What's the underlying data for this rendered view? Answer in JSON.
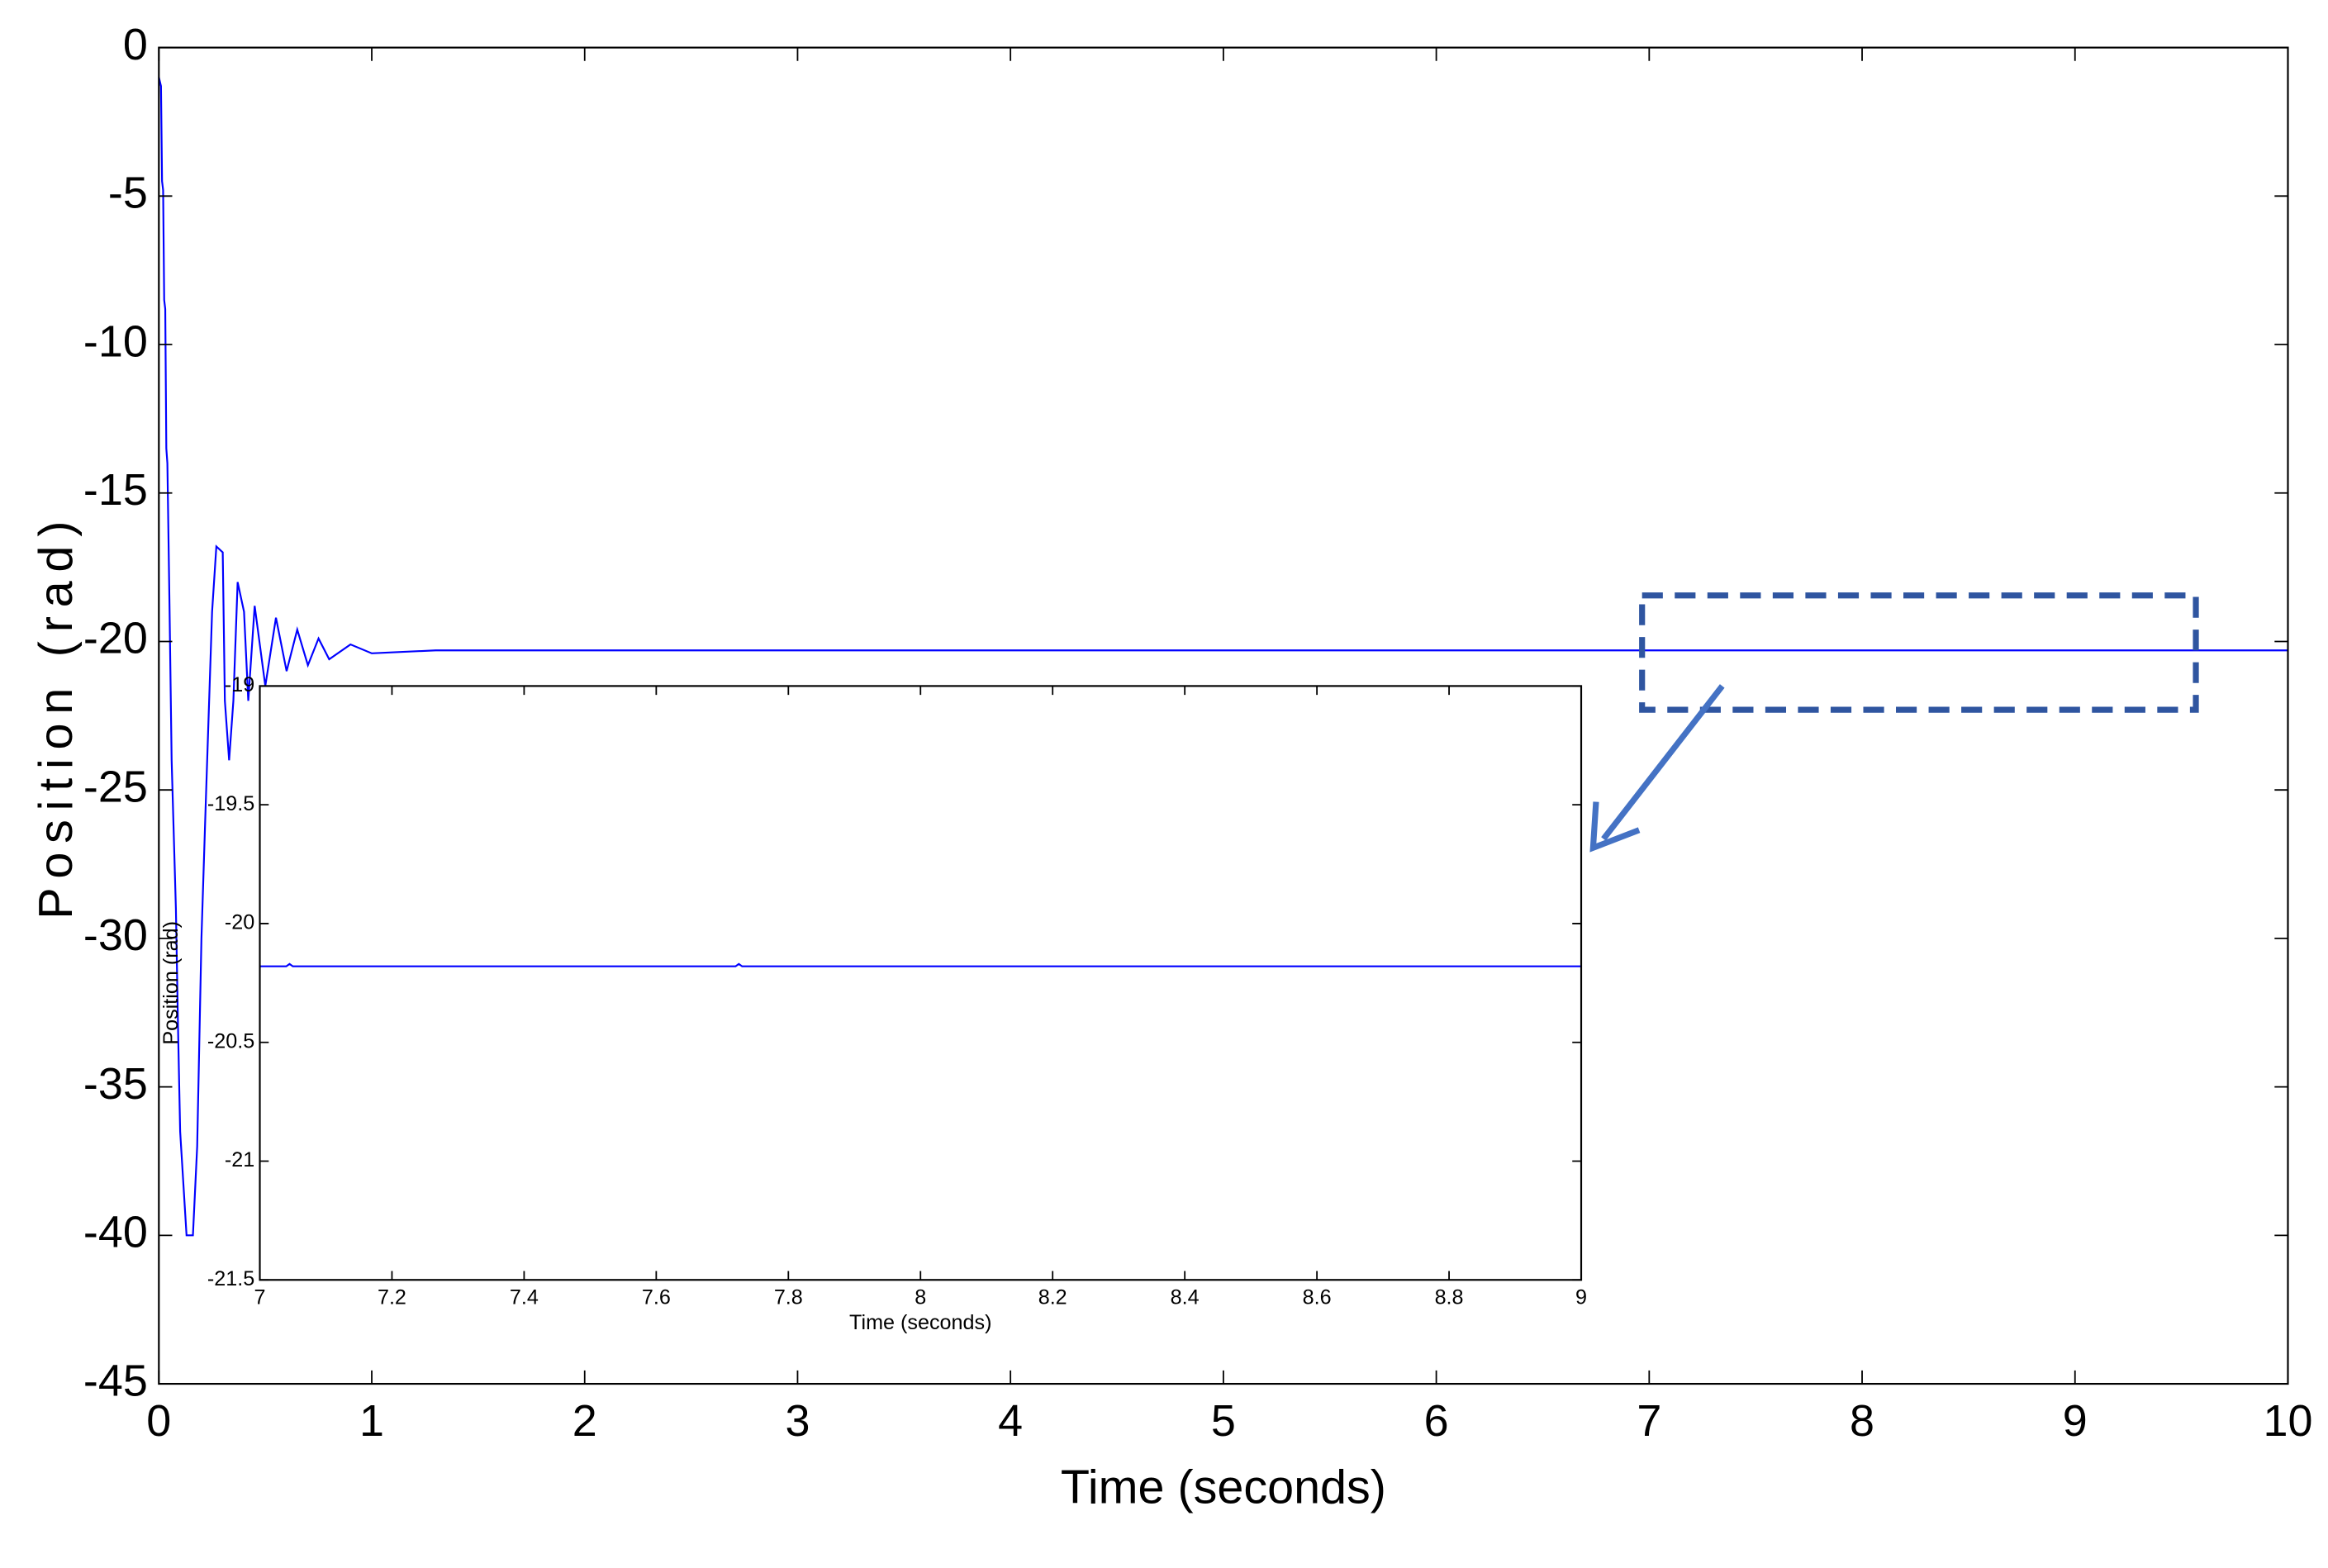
{
  "chart_data": [
    {
      "type": "line",
      "x_label": "Time (seconds)",
      "y_label": "Position (rad)",
      "x": [
        0,
        0.01,
        0.015,
        0.02,
        0.025,
        0.03,
        0.035,
        0.04,
        0.05,
        0.06,
        0.08,
        0.09,
        0.1,
        0.13,
        0.16,
        0.18,
        0.2,
        0.22,
        0.25,
        0.27,
        0.3,
        0.31,
        0.33,
        0.35,
        0.37,
        0.4,
        0.42,
        0.45,
        0.5,
        0.55,
        0.6,
        0.65,
        0.7,
        0.75,
        0.8,
        0.9,
        1.0,
        1.3,
        10
      ],
      "values": [
        -1,
        -1.3,
        -4.5,
        -4.8,
        -8.5,
        -8.8,
        -13.5,
        -14,
        -18.8,
        -24,
        -29,
        -33,
        -36.5,
        -40,
        -40,
        -37,
        -30,
        -25.5,
        -19,
        -16.8,
        -17,
        -22,
        -24,
        -22,
        -18,
        -19,
        -22,
        -18.8,
        -21.5,
        -19.2,
        -21,
        -19.6,
        -20.8,
        -19.9,
        -20.6,
        -20.1,
        -20.4,
        -20.3,
        -20.3
      ],
      "color": "#0000ff",
      "xlim": [
        0,
        10
      ],
      "xticks": [
        0,
        1,
        2,
        3,
        4,
        5,
        6,
        7,
        8,
        9,
        10
      ],
      "ylim": [
        -45,
        0
      ],
      "yticks": [
        0,
        -5,
        -10,
        -15,
        -20,
        -25,
        -30,
        -35,
        -40,
        -45
      ]
    },
    {
      "type": "line",
      "x_label": "Time (seconds)",
      "y_label": "Position (rad)",
      "x": [
        7,
        7.04,
        7.045,
        7.05,
        7.72,
        7.725,
        7.73,
        9
      ],
      "values": [
        -20.18,
        -20.18,
        -20.17,
        -20.18,
        -20.18,
        -20.17,
        -20.18,
        -20.18
      ],
      "color": "#0000ff",
      "xlim": [
        7,
        9
      ],
      "xticks": [
        7,
        7.2,
        7.4,
        7.6,
        7.8,
        8,
        8.2,
        8.4,
        8.6,
        8.8,
        9
      ],
      "ylim": [
        -21.5,
        -19
      ],
      "yticks": [
        -19,
        -19.5,
        -20,
        -20.5,
        -21,
        -21.5
      ]
    }
  ]
}
